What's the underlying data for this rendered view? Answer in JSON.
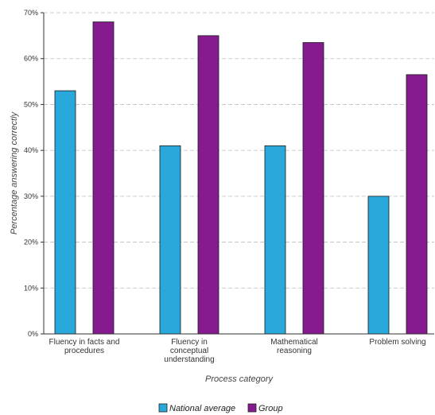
{
  "chart_data": {
    "type": "bar",
    "title": "",
    "xlabel": "Process category",
    "ylabel": "Percentage answering correctly",
    "ylim": [
      0,
      70
    ],
    "yticks": [
      "0%",
      "10%",
      "20%",
      "30%",
      "40%",
      "50%",
      "60%",
      "70%"
    ],
    "ytick_values": [
      0,
      10,
      20,
      30,
      40,
      50,
      60,
      70
    ],
    "categories": [
      [
        "Fluency in facts and",
        "procedures"
      ],
      [
        "Fluency in",
        "conceptual",
        "understanding"
      ],
      [
        "Mathematical",
        "reasoning"
      ],
      [
        "Problem solving"
      ]
    ],
    "series": [
      {
        "name": "National average",
        "color": "#29a8dc",
        "values": [
          53,
          41,
          41,
          30
        ]
      },
      {
        "name": "Group",
        "color": "#861a8f",
        "values": [
          68,
          65,
          63.5,
          56.5
        ]
      }
    ],
    "grid": "horizontal dashed",
    "legend_position": "bottom-center"
  }
}
